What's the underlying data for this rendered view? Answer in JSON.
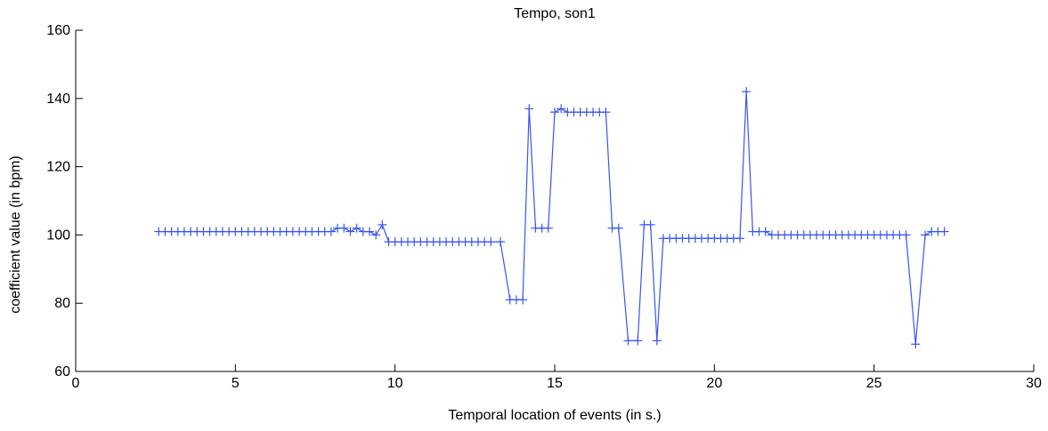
{
  "chart_data": {
    "type": "line",
    "title": "Tempo, son1",
    "xlabel": "Temporal location of events (in s.)",
    "ylabel": "coefficient value (in bpm)",
    "xlim": [
      0,
      30
    ],
    "ylim": [
      60,
      160
    ],
    "xticks": [
      0,
      5,
      10,
      15,
      20,
      25,
      30
    ],
    "yticks": [
      60,
      80,
      100,
      120,
      140,
      160
    ],
    "xtick_labels": [
      "0",
      "5",
      "10",
      "15",
      "20",
      "25",
      "30"
    ],
    "ytick_labels": [
      "60",
      "80",
      "100",
      "120",
      "140",
      "160"
    ],
    "grid": false,
    "line_color": "#3a55f0",
    "marker": "+",
    "series": [
      {
        "x": [
          2.6,
          2.8,
          3.0,
          3.2,
          3.4,
          3.6,
          3.8,
          4.0,
          4.2,
          4.4,
          4.6,
          4.8,
          5.0,
          5.2,
          5.4,
          5.6,
          5.8,
          6.0,
          6.2,
          6.4,
          6.6,
          6.8,
          7.0,
          7.2,
          7.4,
          7.6,
          7.8,
          8.0,
          8.2,
          8.4,
          8.6,
          8.8,
          9.0,
          9.2,
          9.4,
          9.6,
          9.8,
          10.0,
          10.2,
          10.4,
          10.6,
          10.8,
          11.0,
          11.2,
          11.4,
          11.6,
          11.8,
          12.0,
          12.2,
          12.4,
          12.6,
          12.8,
          13.0,
          13.3,
          13.6,
          13.8,
          14.0,
          14.2,
          14.4,
          14.6,
          14.8,
          15.0,
          15.2,
          15.4,
          15.6,
          15.8,
          16.0,
          16.2,
          16.4,
          16.6,
          16.8,
          17.0,
          17.3,
          17.6,
          17.8,
          18.0,
          18.2,
          18.4,
          18.6,
          18.8,
          19.0,
          19.2,
          19.4,
          19.6,
          19.8,
          20.0,
          20.2,
          20.4,
          20.6,
          20.8,
          21.0,
          21.2,
          21.4,
          21.6,
          21.8,
          22.0,
          22.2,
          22.4,
          22.6,
          22.8,
          23.0,
          23.2,
          23.4,
          23.6,
          23.8,
          24.0,
          24.2,
          24.4,
          24.6,
          24.8,
          25.0,
          25.2,
          25.4,
          25.6,
          25.8,
          26.0,
          26.3,
          26.6,
          26.8,
          27.0,
          27.2
        ],
        "y": [
          101,
          101,
          101,
          101,
          101,
          101,
          101,
          101,
          101,
          101,
          101,
          101,
          101,
          101,
          101,
          101,
          101,
          101,
          101,
          101,
          101,
          101,
          101,
          101,
          101,
          101,
          101,
          101,
          102,
          102,
          101,
          102,
          101,
          101,
          100,
          103,
          98,
          98,
          98,
          98,
          98,
          98,
          98,
          98,
          98,
          98,
          98,
          98,
          98,
          98,
          98,
          98,
          98,
          98,
          81,
          81,
          81,
          137,
          102,
          102,
          102,
          136,
          137,
          136,
          136,
          136,
          136,
          136,
          136,
          136,
          102,
          102,
          69,
          69,
          103,
          103,
          69,
          99,
          99,
          99,
          99,
          99,
          99,
          99,
          99,
          99,
          99,
          99,
          99,
          99,
          142,
          101,
          101,
          101,
          100,
          100,
          100,
          100,
          100,
          100,
          100,
          100,
          100,
          100,
          100,
          100,
          100,
          100,
          100,
          100,
          100,
          100,
          100,
          100,
          100,
          100,
          68,
          100,
          101,
          101,
          101
        ]
      }
    ]
  }
}
